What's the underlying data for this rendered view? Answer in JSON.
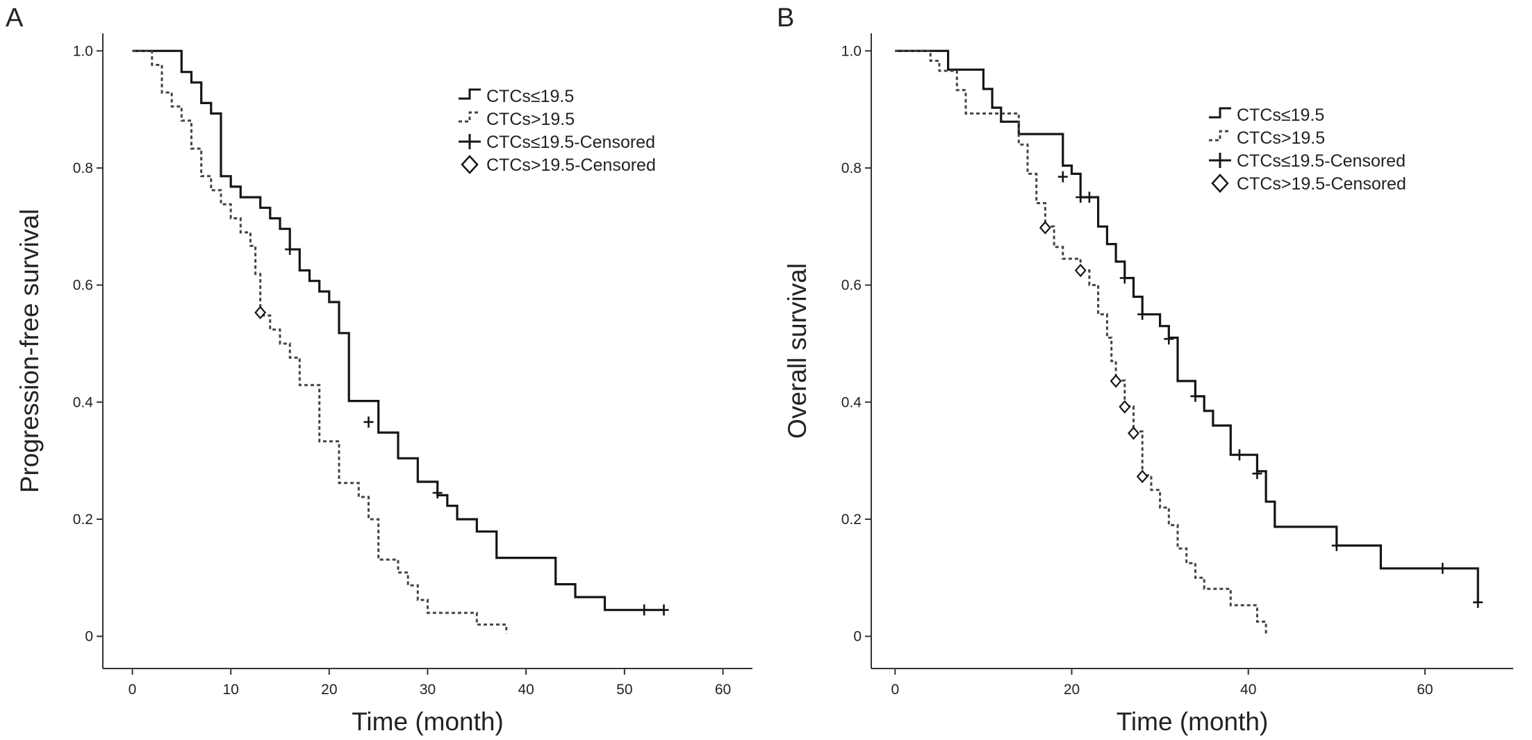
{
  "chart_data": [
    {
      "type": "line",
      "panel": "A",
      "xlabel": "Time (month)",
      "ylabel": "Progression-free survival",
      "xlim": [
        -3,
        63
      ],
      "ylim": [
        -0.055,
        1.03
      ],
      "xticks": [
        0,
        10,
        20,
        30,
        40,
        50,
        60
      ],
      "yticks": [
        {
          "value": 0,
          "label": "0"
        },
        {
          "value": 0.2,
          "label": "0.2"
        },
        {
          "value": 0.4,
          "label": "0.4"
        },
        {
          "value": 0.6,
          "label": "0.6"
        },
        {
          "value": 0.8,
          "label": "0.8"
        },
        {
          "value": 1.0,
          "label": "1.0"
        }
      ],
      "grid": false,
      "legend_position": "top-right",
      "legend": [
        "CTCs≤19.5",
        "CTCs>19.5",
        "CTCs≤19.5-Censored",
        "CTCs>19.5-Censored"
      ],
      "series": [
        {
          "name": "CTCs≤19.5",
          "style": "solid",
          "steps": [
            [
              0,
              1.0
            ],
            [
              5,
              0.964
            ],
            [
              6,
              0.946
            ],
            [
              7,
              0.911
            ],
            [
              8,
              0.893
            ],
            [
              9,
              0.786
            ],
            [
              10,
              0.768
            ],
            [
              11,
              0.75
            ],
            [
              13,
              0.732
            ],
            [
              14,
              0.714
            ],
            [
              15,
              0.696
            ],
            [
              16,
              0.661
            ],
            [
              17,
              0.625
            ],
            [
              18,
              0.607
            ],
            [
              19,
              0.589
            ],
            [
              20,
              0.571
            ],
            [
              21,
              0.518
            ],
            [
              22,
              0.402
            ],
            [
              25,
              0.348
            ],
            [
              27,
              0.304
            ],
            [
              29,
              0.264
            ],
            [
              31,
              0.241
            ],
            [
              32,
              0.223
            ],
            [
              33,
              0.2
            ],
            [
              35,
              0.179
            ],
            [
              37,
              0.134
            ],
            [
              43,
              0.089
            ],
            [
              45,
              0.067
            ],
            [
              48,
              0.045
            ],
            [
              54,
              0.045
            ]
          ],
          "censored": [
            [
              16,
              0.661
            ],
            [
              24,
              0.366
            ],
            [
              31,
              0.245
            ],
            [
              52,
              0.045
            ],
            [
              54,
              0.045
            ]
          ]
        },
        {
          "name": "CTCs>19.5",
          "style": "dashed",
          "steps": [
            [
              0,
              1.0
            ],
            [
              2,
              0.976
            ],
            [
              3,
              0.929
            ],
            [
              4,
              0.905
            ],
            [
              5,
              0.881
            ],
            [
              6,
              0.833
            ],
            [
              7,
              0.786
            ],
            [
              8,
              0.762
            ],
            [
              9,
              0.738
            ],
            [
              10,
              0.714
            ],
            [
              11,
              0.69
            ],
            [
              12,
              0.667
            ],
            [
              12.5,
              0.619
            ],
            [
              13,
              0.548
            ],
            [
              14,
              0.524
            ],
            [
              15,
              0.5
            ],
            [
              16,
              0.476
            ],
            [
              17,
              0.429
            ],
            [
              19,
              0.333
            ],
            [
              21,
              0.262
            ],
            [
              23,
              0.238
            ],
            [
              24,
              0.2
            ],
            [
              25,
              0.131
            ],
            [
              27,
              0.109
            ],
            [
              28,
              0.087
            ],
            [
              29,
              0.062
            ],
            [
              30,
              0.04
            ],
            [
              35,
              0.02
            ],
            [
              38,
              0.005
            ]
          ],
          "censored": [
            [
              13,
              0.553
            ]
          ]
        }
      ]
    },
    {
      "type": "line",
      "panel": "B",
      "xlabel": "Time (month)",
      "ylabel": "Overall survival",
      "xlim": [
        -2.7,
        70
      ],
      "ylim": [
        -0.055,
        1.03
      ],
      "xticks": [
        0,
        20,
        40,
        60
      ],
      "yticks": [
        {
          "value": 0,
          "label": "0"
        },
        {
          "value": 0.2,
          "label": "0.2"
        },
        {
          "value": 0.4,
          "label": "0.4"
        },
        {
          "value": 0.6,
          "label": "0.6"
        },
        {
          "value": 0.8,
          "label": "0.8"
        },
        {
          "value": 1.0,
          "label": "1.0"
        }
      ],
      "grid": false,
      "legend_position": "top-right",
      "legend": [
        "CTCs≤19.5",
        "CTCs>19.5",
        "CTCs≤19.5-Censored",
        "CTCs>19.5-Censored"
      ],
      "series": [
        {
          "name": "CTCs≤19.5",
          "style": "solid",
          "steps": [
            [
              0,
              1.0
            ],
            [
              6,
              0.968
            ],
            [
              8,
              0.968
            ],
            [
              10,
              0.935
            ],
            [
              11,
              0.903
            ],
            [
              12,
              0.879
            ],
            [
              14,
              0.858
            ],
            [
              19,
              0.804
            ],
            [
              20,
              0.79
            ],
            [
              21,
              0.75
            ],
            [
              23,
              0.7
            ],
            [
              24,
              0.67
            ],
            [
              25,
              0.64
            ],
            [
              26,
              0.612
            ],
            [
              27,
              0.58
            ],
            [
              28,
              0.55
            ],
            [
              30,
              0.53
            ],
            [
              31,
              0.51
            ],
            [
              32,
              0.436
            ],
            [
              34,
              0.41
            ],
            [
              35,
              0.385
            ],
            [
              36,
              0.36
            ],
            [
              38,
              0.31
            ],
            [
              40,
              0.31
            ],
            [
              41,
              0.282
            ],
            [
              42,
              0.23
            ],
            [
              43,
              0.187
            ],
            [
              50,
              0.155
            ],
            [
              55,
              0.116
            ],
            [
              66,
              0.058
            ]
          ],
          "censored": [
            [
              19,
              0.785
            ],
            [
              21,
              0.75
            ],
            [
              22,
              0.75
            ],
            [
              26,
              0.612
            ],
            [
              28,
              0.55
            ],
            [
              31,
              0.508
            ],
            [
              34,
              0.41
            ],
            [
              39,
              0.31
            ],
            [
              41,
              0.278
            ],
            [
              50,
              0.155
            ],
            [
              62,
              0.116
            ],
            [
              66,
              0.058
            ]
          ]
        },
        {
          "name": "CTCs>19.5",
          "style": "dashed",
          "steps": [
            [
              0,
              1.0
            ],
            [
              4,
              0.983
            ],
            [
              5,
              0.966
            ],
            [
              7,
              0.933
            ],
            [
              8,
              0.893
            ],
            [
              13,
              0.893
            ],
            [
              14,
              0.84
            ],
            [
              15,
              0.79
            ],
            [
              16,
              0.74
            ],
            [
              17,
              0.7
            ],
            [
              18,
              0.665
            ],
            [
              19,
              0.645
            ],
            [
              21,
              0.625
            ],
            [
              22,
              0.6
            ],
            [
              23,
              0.55
            ],
            [
              24,
              0.51
            ],
            [
              24.5,
              0.47
            ],
            [
              25,
              0.437
            ],
            [
              26,
              0.393
            ],
            [
              27,
              0.35
            ],
            [
              28,
              0.275
            ],
            [
              29,
              0.25
            ],
            [
              30,
              0.22
            ],
            [
              31,
              0.19
            ],
            [
              32,
              0.15
            ],
            [
              33,
              0.125
            ],
            [
              34,
              0.1
            ],
            [
              35,
              0.081
            ],
            [
              38,
              0.053
            ],
            [
              41,
              0.025
            ],
            [
              42,
              0.0
            ]
          ],
          "censored": [
            [
              17,
              0.698
            ],
            [
              21,
              0.625
            ],
            [
              25,
              0.436
            ],
            [
              26,
              0.392
            ],
            [
              27,
              0.347
            ],
            [
              28,
              0.273
            ]
          ]
        }
      ]
    }
  ]
}
